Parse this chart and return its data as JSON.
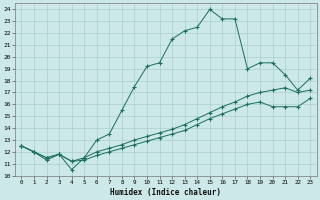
{
  "xlabel": "Humidex (Indice chaleur)",
  "bg_color": "#cce8e8",
  "line_color": "#1a6e5e",
  "grid_color": "#aacfcf",
  "xlim": [
    -0.5,
    23.5
  ],
  "ylim": [
    10,
    24.5
  ],
  "xticks": [
    0,
    1,
    2,
    3,
    4,
    5,
    6,
    7,
    8,
    9,
    10,
    11,
    12,
    13,
    14,
    15,
    16,
    17,
    18,
    19,
    20,
    21,
    22,
    23
  ],
  "yticks": [
    10,
    11,
    12,
    13,
    14,
    15,
    16,
    17,
    18,
    19,
    20,
    21,
    22,
    23,
    24
  ],
  "series1_x": [
    0,
    1,
    2,
    3,
    4,
    5,
    6,
    7,
    8,
    9,
    10,
    11,
    12,
    13,
    14,
    15,
    16,
    17,
    18,
    19,
    20,
    21,
    22,
    23
  ],
  "series1_y": [
    12.5,
    12.0,
    11.3,
    11.8,
    10.5,
    11.5,
    13.0,
    13.5,
    15.5,
    17.5,
    19.2,
    19.5,
    21.5,
    22.2,
    22.5,
    24.0,
    23.2,
    23.2,
    19.0,
    19.5,
    19.5,
    18.5,
    17.2,
    18.2
  ],
  "series2_x": [
    0,
    1,
    2,
    3,
    4,
    5,
    6,
    7,
    8,
    9,
    10,
    11,
    12,
    13,
    14,
    15,
    16,
    17,
    18,
    19,
    20,
    21,
    22,
    23
  ],
  "series2_y": [
    12.5,
    12.0,
    11.5,
    11.8,
    11.2,
    11.5,
    12.0,
    12.3,
    12.6,
    13.0,
    13.3,
    13.6,
    13.9,
    14.3,
    14.8,
    15.3,
    15.8,
    16.2,
    16.7,
    17.0,
    17.2,
    17.4,
    17.0,
    17.2
  ],
  "series3_x": [
    0,
    1,
    2,
    3,
    4,
    5,
    6,
    7,
    8,
    9,
    10,
    11,
    12,
    13,
    14,
    15,
    16,
    17,
    18,
    19,
    20,
    21,
    22,
    23
  ],
  "series3_y": [
    12.5,
    12.0,
    11.5,
    11.8,
    11.2,
    11.3,
    11.7,
    12.0,
    12.3,
    12.6,
    12.9,
    13.2,
    13.5,
    13.8,
    14.3,
    14.8,
    15.2,
    15.6,
    16.0,
    16.2,
    15.8,
    15.8,
    15.8,
    16.5
  ]
}
